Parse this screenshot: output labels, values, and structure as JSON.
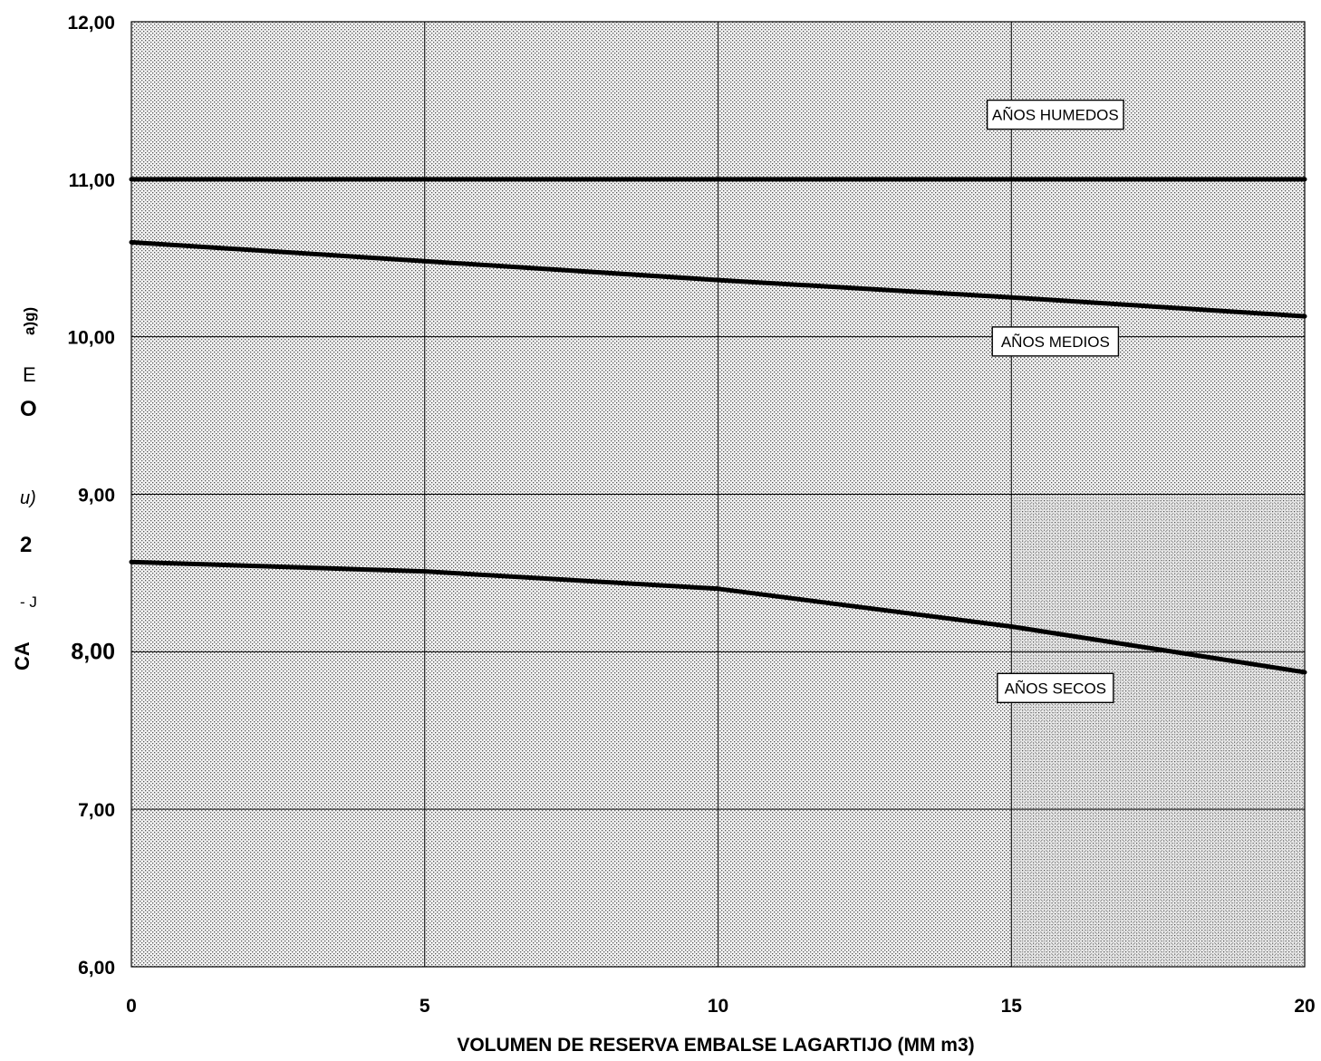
{
  "chart_data": {
    "type": "line",
    "title": "",
    "xlabel": "VOLUMEN DE RESERVA EMBALSE LAGARTIJO (MM m3)",
    "ylabel_fragments": [
      "a)g)",
      "E",
      "O",
      "u)",
      "2",
      "- J",
      "CA"
    ],
    "xlim": [
      0,
      20
    ],
    "ylim": [
      6,
      12
    ],
    "x_ticks": [
      "0",
      "5",
      "10",
      "15",
      "20"
    ],
    "y_ticks": [
      "6,00",
      "7,00",
      "8,00",
      "9,00",
      "10,00",
      "11,00",
      "12,00"
    ],
    "x_tick_values": [
      0,
      5,
      10,
      15,
      20
    ],
    "y_tick_values": [
      6,
      7,
      8,
      9,
      10,
      11,
      12
    ],
    "grid": true,
    "series": [
      {
        "name": "AÑOS HUMEDOS",
        "x": [
          0,
          5,
          10,
          15,
          20
        ],
        "y": [
          11.0,
          11.0,
          11.0,
          11.0,
          11.0
        ]
      },
      {
        "name": "AÑOS MEDIOS",
        "x": [
          0,
          5,
          10,
          15,
          20
        ],
        "y": [
          10.6,
          10.48,
          10.36,
          10.25,
          10.13
        ]
      },
      {
        "name": "AÑOS SECOS",
        "x": [
          0,
          5,
          10,
          15,
          20
        ],
        "y": [
          8.57,
          8.51,
          8.4,
          8.16,
          7.87
        ]
      }
    ],
    "annotations": [
      {
        "text": "AÑOS HUMEDOS",
        "x": 15.75,
        "y": 11.41
      },
      {
        "text": "AÑOS MEDIOS",
        "x": 15.75,
        "y": 9.97
      },
      {
        "text": "AÑOS SECOS",
        "x": 15.75,
        "y": 7.77
      }
    ]
  }
}
